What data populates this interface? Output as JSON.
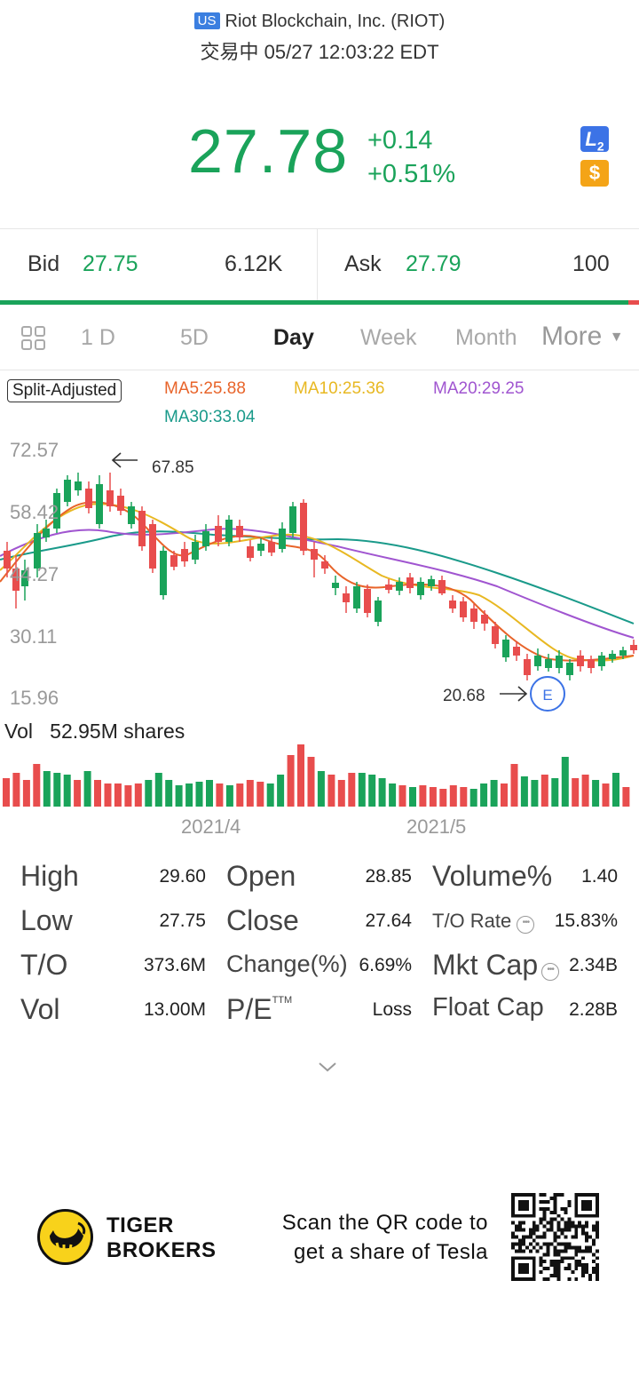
{
  "header": {
    "market_badge": "US",
    "stock_name": "Riot Blockchain, Inc. (RIOT)",
    "status_time": "交易中 05/27 12:03:22 EDT"
  },
  "quote": {
    "price": "27.78",
    "change": "+0.14",
    "change_pct": "+0.51%",
    "up_color": "#1aa35a",
    "down_color": "#e84d4d",
    "l2_badge": "L",
    "l2_sub": "2",
    "dollar_badge": "$"
  },
  "bid_ask": {
    "bid_label": "Bid",
    "bid_price": "27.75",
    "bid_size": "6.12K",
    "ask_label": "Ask",
    "ask_price": "27.79",
    "ask_size": "100",
    "bid_ratio": 0.983
  },
  "tabs": [
    {
      "label": "1 D"
    },
    {
      "label": "5D"
    },
    {
      "label": "Day",
      "active": true
    },
    {
      "label": "Week"
    },
    {
      "label": "Month"
    },
    {
      "label": "More"
    }
  ],
  "legend": {
    "split": "Split-Adjusted",
    "ma5": "MA5:25.88",
    "ma10": "MA10:25.36",
    "ma20": "MA20:29.25",
    "ma30": "MA30:33.04"
  },
  "chart_data": {
    "type": "candlestick",
    "y_ticks": [
      "72.57",
      "58.42",
      "44.27",
      "30.11",
      "15.96"
    ],
    "ylim": [
      15.96,
      72.57
    ],
    "high_marker": "67.85",
    "low_marker": "20.68",
    "earnings_marker": "E",
    "x_ticks": [
      "2021/4",
      "2021/5"
    ],
    "series_colors": {
      "ma5": "#e8642a",
      "ma10": "#e8b822",
      "ma20": "#a055d0",
      "ma30": "#1a9a8a"
    }
  },
  "volume": {
    "label": "Vol",
    "value": "52.95M shares"
  },
  "stats": {
    "high_lbl": "High",
    "high": "29.60",
    "low_lbl": "Low",
    "low": "27.75",
    "to_lbl": "T/O",
    "to": "373.6M",
    "vol_lbl": "Vol",
    "vol": "13.00M",
    "open_lbl": "Open",
    "open": "28.85",
    "close_lbl": "Close",
    "close": "27.64",
    "changepct_lbl": "Change(%)",
    "changepct": "6.69%",
    "pe_lbl": "P/E",
    "pe_sup": "TTM",
    "pe": "Loss",
    "volpct_lbl": "Volume%",
    "volpct": "1.40",
    "torate_lbl": "T/O Rate",
    "torate": "15.83%",
    "mktcap_lbl": "Mkt Cap",
    "mktcap": "2.34B",
    "floatcap_lbl": "Float Cap",
    "floatcap": "2.28B"
  },
  "footer": {
    "brand_line1": "TIGER",
    "brand_line2": "BROKERS",
    "promo_line1": "Scan the QR code to",
    "promo_line2": "get a share of Tesla"
  }
}
